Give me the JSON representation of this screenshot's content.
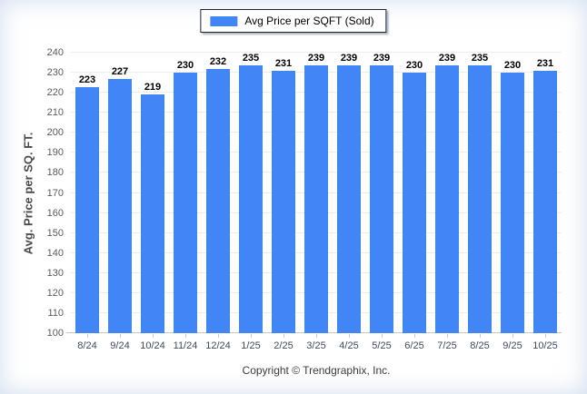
{
  "legend": {
    "label": "Avg Price per SQFT (Sold)"
  },
  "footer": {
    "copyright": "Copyright © Trendgraphix, Inc."
  },
  "colors": {
    "bar": "#4285F4",
    "gridline": "#ededed",
    "axis_line": "#c6c6c6",
    "x_label": "#3f4c5e",
    "y_label": "#5a5a5a",
    "legend_border": "#16243d"
  },
  "chart_data": {
    "type": "bar",
    "title": "",
    "categories": [
      "8/24",
      "9/24",
      "10/24",
      "11/24",
      "12/24",
      "1/25",
      "2/25",
      "3/25",
      "4/25",
      "5/25",
      "6/25",
      "7/25",
      "8/25",
      "9/25",
      "10/25"
    ],
    "values": [
      223,
      227,
      219,
      230,
      232,
      235,
      231,
      239,
      239,
      239,
      230,
      239,
      235,
      230,
      231
    ],
    "xlabel": "",
    "ylabel": "Avg. Price per SQ. FT.",
    "ylim": [
      100,
      240
    ],
    "yticks": [
      100,
      110,
      120,
      130,
      140,
      150,
      160,
      170,
      180,
      190,
      200,
      210,
      220,
      230,
      240
    ],
    "grid": true,
    "legend_position": "top",
    "value_labels": "above-bars",
    "bar_color": "#4285F4"
  }
}
